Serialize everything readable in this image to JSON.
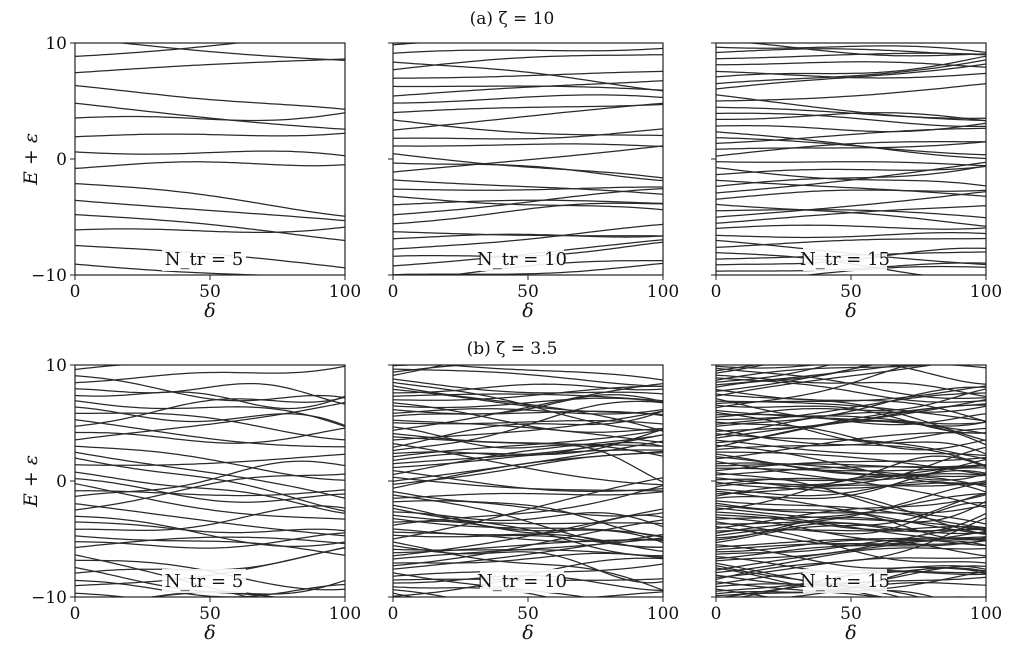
{
  "figure": {
    "row_titles": [
      "(a) ζ = 10",
      "(b) ζ = 3.5"
    ]
  },
  "chart_data": [
    {
      "type": "line",
      "row": 0,
      "col": 0,
      "zeta": 10,
      "n_tr": 5,
      "annotation": "N_tr = 5",
      "xlabel": "δ",
      "ylabel": "E + ε",
      "xlim": [
        0,
        100
      ],
      "ylim": [
        -10,
        10
      ],
      "xticks": [
        0,
        50,
        100
      ],
      "yticks": [
        -10,
        0,
        10
      ],
      "grid": false,
      "series_count": 16
    },
    {
      "type": "line",
      "row": 0,
      "col": 1,
      "zeta": 10,
      "n_tr": 10,
      "annotation": "N_tr = 10",
      "xlabel": "δ",
      "ylabel": "",
      "xlim": [
        0,
        100
      ],
      "ylim": [
        -10,
        10
      ],
      "xticks": [
        0,
        50,
        100
      ],
      "yticks": [],
      "grid": false,
      "series_count": 30
    },
    {
      "type": "line",
      "row": 0,
      "col": 2,
      "zeta": 10,
      "n_tr": 15,
      "annotation": "N_tr = 15",
      "xlabel": "δ",
      "ylabel": "",
      "xlim": [
        0,
        100
      ],
      "ylim": [
        -10,
        10
      ],
      "xticks": [
        0,
        50,
        100
      ],
      "yticks": [],
      "grid": false,
      "series_count": 42
    },
    {
      "type": "line",
      "row": 1,
      "col": 0,
      "zeta": 3.5,
      "n_tr": 5,
      "annotation": "N_tr = 5",
      "xlabel": "δ",
      "ylabel": "E + ε",
      "xlim": [
        0,
        100
      ],
      "ylim": [
        -10,
        10
      ],
      "xticks": [
        0,
        50,
        100
      ],
      "yticks": [
        -10,
        0,
        10
      ],
      "grid": false,
      "series_count": 40
    },
    {
      "type": "line",
      "row": 1,
      "col": 1,
      "zeta": 3.5,
      "n_tr": 10,
      "annotation": "N_tr = 10",
      "xlabel": "δ",
      "ylabel": "",
      "xlim": [
        0,
        100
      ],
      "ylim": [
        -10,
        10
      ],
      "xticks": [
        0,
        50,
        100
      ],
      "yticks": [],
      "grid": false,
      "series_count": 75
    },
    {
      "type": "line",
      "row": 1,
      "col": 2,
      "zeta": 3.5,
      "n_tr": 15,
      "annotation": "N_tr = 15",
      "xlabel": "δ",
      "ylabel": "",
      "xlim": [
        0,
        100
      ],
      "ylim": [
        -10,
        10
      ],
      "xticks": [
        0,
        50,
        100
      ],
      "yticks": [],
      "grid": false,
      "series_count": 110
    }
  ]
}
